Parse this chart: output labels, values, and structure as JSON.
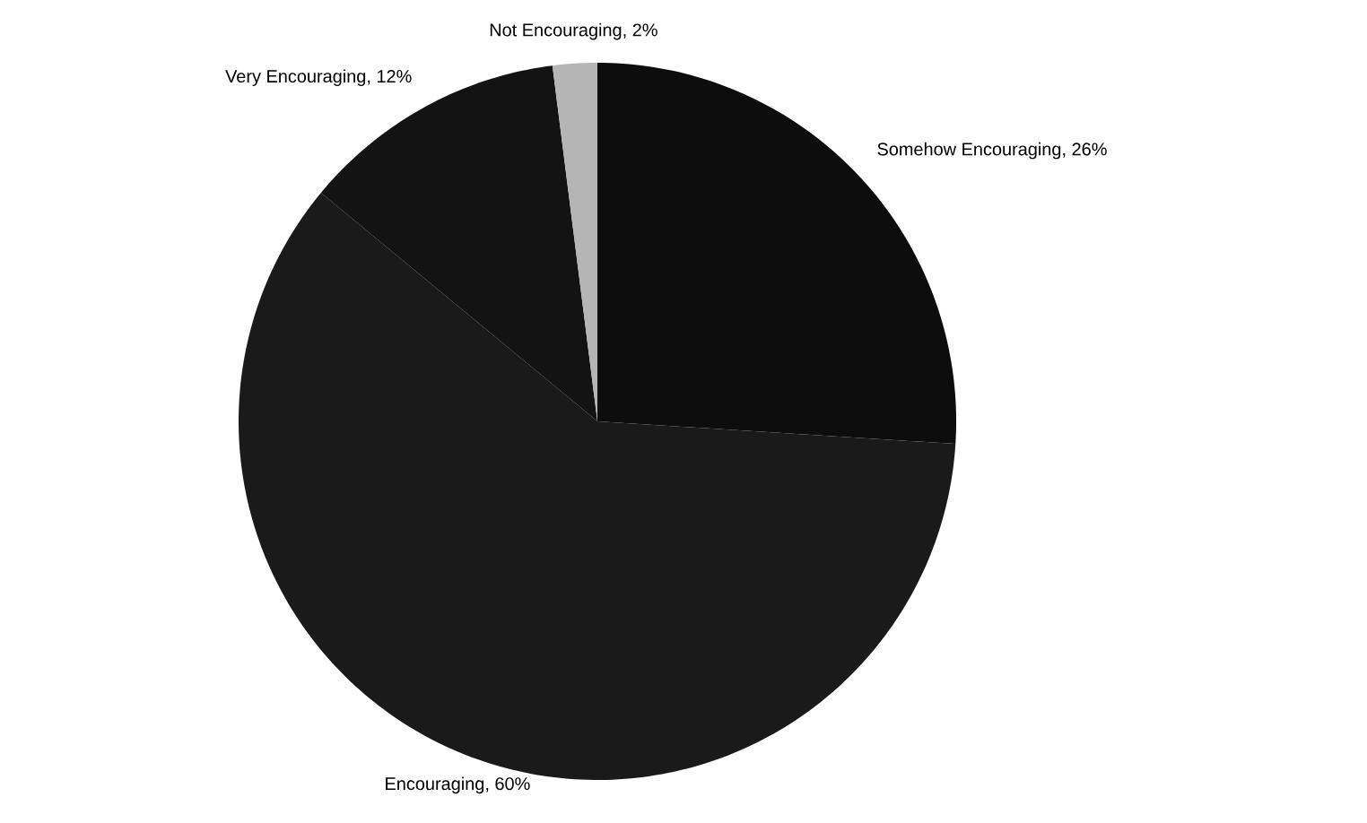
{
  "chart_data": {
    "type": "pie",
    "categories": [
      "Somehow Encouraging",
      "Encouraging",
      "Very Encouraging",
      "Not Encouraging"
    ],
    "values": [
      26,
      60,
      12,
      2
    ],
    "value_labels": [
      ", 26%",
      ", 60%",
      ", 12%",
      ", 2%"
    ],
    "colors": [
      "#0d0d0d",
      "#1a1a1a",
      "#131313",
      "#b5b5b5"
    ]
  }
}
